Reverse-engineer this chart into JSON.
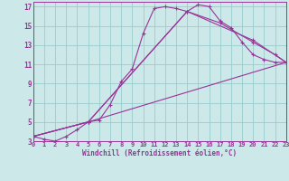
{
  "xlabel": "Windchill (Refroidissement éolien,°C)",
  "background_color": "#cce8e8",
  "grid_color": "#99cccc",
  "line_color": "#993399",
  "spine_color": "#993399",
  "xlim": [
    0,
    23
  ],
  "ylim": [
    3,
    17.5
  ],
  "xticks": [
    0,
    1,
    2,
    3,
    4,
    5,
    6,
    7,
    8,
    9,
    10,
    11,
    12,
    13,
    14,
    15,
    16,
    17,
    18,
    19,
    20,
    21,
    22,
    23
  ],
  "yticks": [
    3,
    5,
    7,
    9,
    11,
    13,
    15,
    17
  ],
  "lines": [
    {
      "x": [
        0,
        1,
        2,
        3,
        4,
        5,
        6,
        7,
        8,
        9,
        10,
        11,
        12,
        13,
        14,
        15,
        16,
        17,
        18,
        19,
        20,
        21,
        22,
        23
      ],
      "y": [
        3.5,
        3.2,
        3.0,
        3.5,
        4.2,
        5.0,
        5.2,
        6.8,
        9.2,
        10.5,
        14.2,
        16.8,
        17.0,
        16.8,
        16.5,
        17.2,
        17.0,
        15.5,
        14.8,
        13.3,
        12.0,
        11.5,
        11.2,
        11.2
      ]
    },
    {
      "x": [
        0,
        5,
        23
      ],
      "y": [
        3.5,
        5.0,
        11.2
      ]
    },
    {
      "x": [
        0,
        5,
        14,
        20,
        23
      ],
      "y": [
        3.5,
        5.0,
        16.5,
        13.5,
        11.2
      ]
    },
    {
      "x": [
        0,
        5,
        14,
        17,
        20,
        22,
        23
      ],
      "y": [
        3.5,
        5.0,
        16.5,
        15.3,
        13.3,
        12.0,
        11.2
      ]
    }
  ]
}
